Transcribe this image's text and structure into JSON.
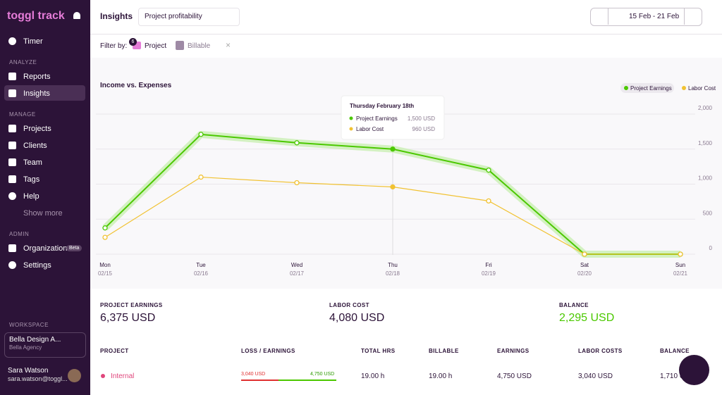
{
  "sidebar": {
    "logo": "toggl track",
    "timer": "Timer",
    "sections": [
      {
        "title": "ANALYZE",
        "items": [
          "Reports",
          "Insights"
        ]
      },
      {
        "title": "MANAGE",
        "items": [
          "Projects",
          "Clients",
          "Team",
          "Tags",
          "Help",
          "Show more"
        ]
      },
      {
        "title": "ADMIN",
        "items": [
          "Organization",
          "Settings"
        ]
      }
    ],
    "beta": "Beta",
    "workspace_label": "WORKSPACE",
    "workspace_name": "Bella Design A...",
    "workspace_sub": "Bella Agency",
    "user_name": "Sara Watson",
    "user_email": "sara.watson@toggl..."
  },
  "header": {
    "title": "Insights",
    "report": "Project profitability",
    "date_range": "15 Feb - 21 Feb"
  },
  "filter": {
    "label": "Filter by:",
    "project_count": "6",
    "project": "Project",
    "billable": "Billable"
  },
  "chart_data": {
    "type": "line",
    "title": "Income vs. Expenses",
    "categories": [
      "Mon",
      "Tue",
      "Wed",
      "Thu",
      "Fri",
      "Sat",
      "Sun"
    ],
    "dates": [
      "02/15",
      "02/16",
      "02/17",
      "02/18",
      "02/19",
      "02/20",
      "02/21"
    ],
    "series": [
      {
        "name": "Project Earnings",
        "color": "#4bc800",
        "values": [
          375,
          1710,
          1590,
          1500,
          1200,
          0,
          0
        ]
      },
      {
        "name": "Labor Cost",
        "color": "#f1c232",
        "values": [
          240,
          1100,
          1020,
          960,
          760,
          0,
          0
        ]
      }
    ],
    "ylim": [
      0,
      2000
    ],
    "yticks": [
      0,
      500,
      {
        "value": 1000,
        "label": "1,000"
      },
      {
        "value": 1500,
        "label": "1,500"
      },
      {
        "value": 2000,
        "label": "2,000"
      }
    ],
    "grid": true,
    "legend": "top-right",
    "tooltip": {
      "title": "Thursday February 18th",
      "rows": [
        {
          "name": "Project Earnings",
          "value": "1,500 USD"
        },
        {
          "name": "Labor Cost",
          "value": "960 USD"
        }
      ]
    }
  },
  "summary": [
    {
      "label": "PROJECT EARNINGS",
      "value": "6,375 USD"
    },
    {
      "label": "LABOR COST",
      "value": "4,080 USD"
    },
    {
      "label": "BALANCE",
      "value": "2,295 USD"
    }
  ],
  "table": {
    "columns": [
      "PROJECT",
      "LOSS / EARNINGS",
      "TOTAL HRS",
      "BILLABLE",
      "EARNINGS",
      "LABOR COSTS",
      "BALANCE"
    ],
    "rows": [
      {
        "project": "Internal",
        "loss": "3,040 USD",
        "earn": "4,750 USD",
        "cells": [
          "19.00 h",
          "19.00 h",
          "4,750 USD",
          "3,040 USD",
          "1,710 USD"
        ]
      }
    ]
  }
}
